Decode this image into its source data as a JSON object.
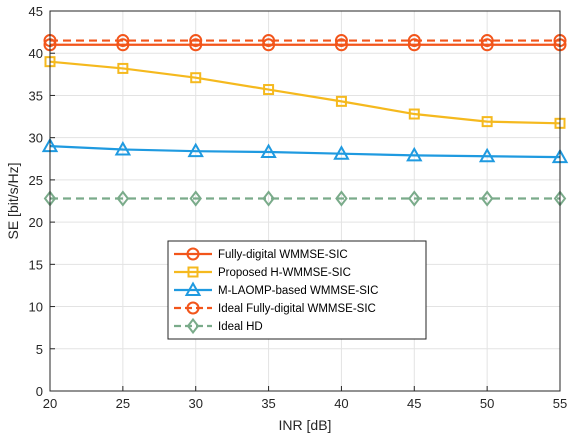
{
  "chart_data": {
    "type": "line",
    "xlabel": "INR [dB]",
    "ylabel": "SE [bit/s/Hz]",
    "x": [
      20,
      25,
      30,
      35,
      40,
      45,
      50,
      55
    ],
    "xlim": [
      20,
      55
    ],
    "ylim": [
      0,
      45
    ],
    "xticks": [
      20,
      25,
      30,
      35,
      40,
      45,
      50,
      55
    ],
    "yticks": [
      0,
      5,
      10,
      15,
      20,
      25,
      30,
      35,
      40,
      45
    ],
    "grid": true,
    "legend_position": "lower-center",
    "series": [
      {
        "name": "Fully-digital WMMSE-SIC",
        "values": [
          41.0,
          41.0,
          41.0,
          41.0,
          41.0,
          41.0,
          41.0,
          41.0
        ],
        "color": "#f2551b",
        "marker": "circle",
        "dash": "solid"
      },
      {
        "name": "Proposed H-WMMSE-SIC",
        "values": [
          39.0,
          38.2,
          37.1,
          35.7,
          34.3,
          32.8,
          31.9,
          31.7
        ],
        "color": "#f5b91e",
        "marker": "square",
        "dash": "solid"
      },
      {
        "name": "M-LAOMP-based WMMSE-SIC",
        "values": [
          29.0,
          28.6,
          28.4,
          28.3,
          28.1,
          27.9,
          27.8,
          27.7
        ],
        "color": "#1f9ae0",
        "marker": "triangle",
        "dash": "solid"
      },
      {
        "name": "Ideal Fully-digital WMMSE-SIC",
        "values": [
          41.5,
          41.5,
          41.5,
          41.5,
          41.5,
          41.5,
          41.5,
          41.5
        ],
        "color": "#f2551b",
        "marker": "circle",
        "dash": "dashed"
      },
      {
        "name": "Ideal HD",
        "values": [
          22.8,
          22.8,
          22.8,
          22.8,
          22.8,
          22.8,
          22.8,
          22.8
        ],
        "color": "#7aab8a",
        "marker": "diamond",
        "dash": "dashed"
      }
    ]
  }
}
